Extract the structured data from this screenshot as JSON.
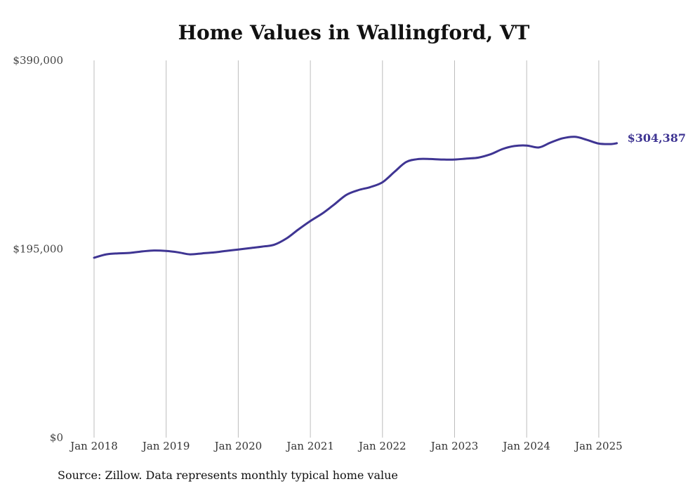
{
  "chart_data": {
    "type": "line",
    "title": "Home Values in Wallingford, VT",
    "xlabel": "",
    "ylabel": "",
    "ylim": [
      0,
      390000
    ],
    "y_ticks": [
      "$390,000",
      "$195,000",
      "$0"
    ],
    "y_tick_values": [
      390000,
      195000,
      0
    ],
    "x_ticks": [
      "Jan 2018",
      "Jan 2019",
      "Jan 2020",
      "Jan 2021",
      "Jan 2022",
      "Jan 2023",
      "Jan 2024",
      "Jan 2025"
    ],
    "x_tick_values": [
      2018.0,
      2019.0,
      2020.0,
      2021.0,
      2022.0,
      2023.0,
      2024.0,
      2025.0
    ],
    "xlim": [
      2017.6,
      2025.9
    ],
    "grid": "vertical",
    "line_color": "#3f3593",
    "end_label": "$304,387",
    "x": [
      2018.0,
      2018.17,
      2018.33,
      2018.5,
      2018.67,
      2018.83,
      2019.0,
      2019.17,
      2019.33,
      2019.5,
      2019.67,
      2019.83,
      2020.0,
      2020.17,
      2020.33,
      2020.5,
      2020.67,
      2020.83,
      2021.0,
      2021.17,
      2021.33,
      2021.5,
      2021.67,
      2021.83,
      2022.0,
      2022.17,
      2022.33,
      2022.5,
      2022.67,
      2022.83,
      2023.0,
      2023.17,
      2023.33,
      2023.5,
      2023.67,
      2023.83,
      2024.0,
      2024.17,
      2024.33,
      2024.5,
      2024.67,
      2024.83,
      2025.0,
      2025.17,
      2025.25
    ],
    "values": [
      186000,
      189500,
      190500,
      191000,
      192500,
      193500,
      193000,
      191500,
      189500,
      190500,
      191500,
      193000,
      194500,
      196000,
      197500,
      199500,
      206000,
      215000,
      224000,
      232000,
      241000,
      251000,
      256000,
      259000,
      264000,
      275000,
      285000,
      288000,
      288000,
      287500,
      287500,
      288500,
      289500,
      293000,
      298500,
      301500,
      302000,
      300000,
      305000,
      309500,
      311000,
      308000,
      304000,
      303500,
      304387
    ]
  },
  "source": "Source: Zillow. Data represents monthly typical home value"
}
